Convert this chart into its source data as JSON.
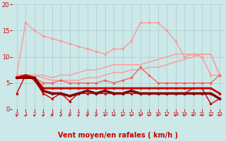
{
  "bg_color": "#cce8e8",
  "grid_color": "#aacccc",
  "xlabel": "Vent moyen/en rafales ( km/h )",
  "xlabel_color": "#cc0000",
  "xlabel_fontsize": 7,
  "xlim": [
    -0.5,
    23.5
  ],
  "ylim": [
    0,
    20
  ],
  "yticks": [
    0,
    5,
    10,
    15,
    20
  ],
  "xticks": [
    0,
    1,
    2,
    3,
    4,
    5,
    6,
    7,
    8,
    9,
    10,
    11,
    12,
    13,
    14,
    15,
    16,
    17,
    18,
    19,
    20,
    21,
    22,
    23
  ],
  "series": [
    {
      "x": [
        0,
        1,
        2,
        3,
        4,
        5,
        6,
        7,
        8,
        9,
        10,
        11,
        12,
        13,
        14,
        15,
        16,
        17,
        18,
        19,
        20,
        21,
        22,
        23
      ],
      "y": [
        6.5,
        16.5,
        15,
        14,
        13.5,
        13,
        12.5,
        12,
        11.5,
        11,
        10.5,
        11.5,
        11.5,
        13,
        16.5,
        16.5,
        16.5,
        15,
        13,
        10,
        10.5,
        10,
        6.5,
        6.5
      ],
      "color": "#ff9999",
      "lw": 1.0,
      "marker": "s",
      "ms": 2,
      "zorder": 2
    },
    {
      "x": [
        0,
        1,
        2,
        3,
        4,
        5,
        6,
        7,
        8,
        9,
        10,
        11,
        12,
        13,
        14,
        15,
        16,
        17,
        18,
        19,
        20,
        21,
        22,
        23
      ],
      "y": [
        6.5,
        6.5,
        6.5,
        6.5,
        6,
        6.5,
        6.5,
        7,
        7.5,
        7.5,
        8,
        8.5,
        8.5,
        8.5,
        8.5,
        9,
        9.5,
        10,
        10.5,
        10.5,
        10.5,
        10.5,
        10.5,
        6.5
      ],
      "color": "#ff9999",
      "lw": 1.0,
      "marker": null,
      "ms": 0,
      "zorder": 2
    },
    {
      "x": [
        0,
        1,
        2,
        3,
        4,
        5,
        6,
        7,
        8,
        9,
        10,
        11,
        12,
        13,
        14,
        15,
        16,
        17,
        18,
        19,
        20,
        21,
        22,
        23
      ],
      "y": [
        6.5,
        6.5,
        6.5,
        6,
        5.5,
        5.5,
        5.5,
        5.5,
        6,
        6,
        6.5,
        7,
        7,
        7.5,
        7.5,
        8,
        8,
        8.5,
        9,
        9.5,
        10,
        10.5,
        10.5,
        6.5
      ],
      "color": "#ff9999",
      "lw": 1.0,
      "marker": null,
      "ms": 0,
      "zorder": 2
    },
    {
      "x": [
        0,
        1,
        2,
        3,
        4,
        5,
        6,
        7,
        8,
        9,
        10,
        11,
        12,
        13,
        14,
        15,
        16,
        17,
        18,
        19,
        20,
        21,
        22,
        23
      ],
      "y": [
        6,
        6.5,
        6,
        5,
        5,
        5.5,
        5,
        5,
        5,
        5,
        5.5,
        5,
        5.5,
        6,
        8,
        6.5,
        5,
        5,
        5,
        5,
        5,
        5,
        5,
        6.5
      ],
      "color": "#ee6666",
      "lw": 1.0,
      "marker": "s",
      "ms": 2,
      "zorder": 3
    },
    {
      "x": [
        0,
        1,
        2,
        3,
        4,
        5,
        6,
        7,
        8,
        9,
        10,
        11,
        12,
        13,
        14,
        15,
        16,
        17,
        18,
        19,
        20,
        21,
        22,
        23
      ],
      "y": [
        6,
        6.5,
        6,
        4,
        4,
        4,
        4,
        4,
        4,
        4,
        4,
        4,
        4,
        4,
        4,
        4,
        4,
        4,
        4,
        4,
        4,
        4,
        4,
        3
      ],
      "color": "#cc0000",
      "lw": 2.0,
      "marker": "s",
      "ms": 2,
      "zorder": 5
    },
    {
      "x": [
        0,
        1,
        2,
        3,
        4,
        5,
        6,
        7,
        8,
        9,
        10,
        11,
        12,
        13,
        14,
        15,
        16,
        17,
        18,
        19,
        20,
        21,
        22,
        23
      ],
      "y": [
        3,
        6.5,
        5.5,
        3,
        2,
        3,
        1.5,
        3,
        3,
        3,
        3,
        3,
        3,
        3,
        3,
        3,
        3,
        3,
        3,
        3,
        4,
        4,
        1,
        2
      ],
      "color": "#cc0000",
      "lw": 1.0,
      "marker": "s",
      "ms": 2,
      "zorder": 4
    },
    {
      "x": [
        0,
        1,
        2,
        3,
        4,
        5,
        6,
        7,
        8,
        9,
        10,
        11,
        12,
        13,
        14,
        15,
        16,
        17,
        18,
        19,
        20,
        21,
        22,
        23
      ],
      "y": [
        6,
        6,
        6,
        3.5,
        3,
        3,
        2.5,
        3,
        3.5,
        3,
        3.5,
        3,
        3,
        3.5,
        3,
        3,
        3,
        3,
        3,
        3,
        3,
        3,
        3,
        2
      ],
      "color": "#880000",
      "lw": 2.5,
      "marker": "s",
      "ms": 2,
      "zorder": 6
    }
  ],
  "tick_fontsize": 6,
  "tick_color": "#cc0000",
  "arrow_angles": [
    20,
    35,
    40,
    40,
    40,
    40,
    40,
    40,
    40,
    40,
    50,
    50,
    55,
    55,
    60,
    60,
    60,
    60,
    60,
    60,
    60,
    60,
    60,
    55
  ]
}
